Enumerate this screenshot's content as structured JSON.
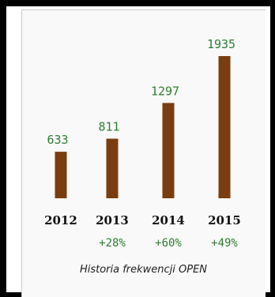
{
  "chart_data": {
    "type": "bar",
    "categories": [
      "2012",
      "2013",
      "2014",
      "2015"
    ],
    "values": [
      633,
      811,
      1297,
      1935
    ],
    "changes": [
      "",
      "+28%",
      "+60%",
      "+49%"
    ],
    "title": "Historia frekwencji OPEN",
    "xlabel": "",
    "ylabel": "",
    "ylim": [
      0,
      1935
    ],
    "grid": false,
    "legend": "none"
  },
  "colors": {
    "bar": "#7a3d0f",
    "value_label": "#2e7d32",
    "change_label": "#2e7d32",
    "category_label": "#111111",
    "frame": "#000000",
    "panel": "#f9f9f9"
  }
}
